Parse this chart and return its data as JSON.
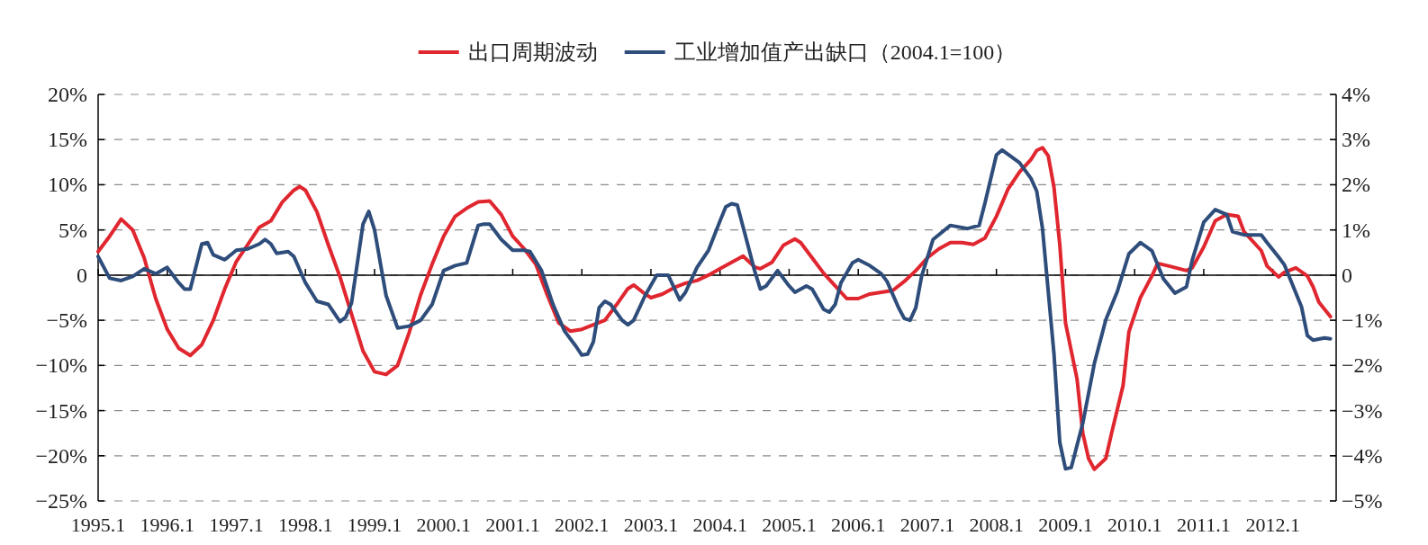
{
  "chart_data": {
    "type": "line",
    "xlim": [
      "1995-01",
      "2012-12"
    ],
    "xticks": [
      {
        "value": "1995-01",
        "label": "1995.1"
      },
      {
        "value": "1996-01",
        "label": "1996.1"
      },
      {
        "value": "1997-01",
        "label": "1997.1"
      },
      {
        "value": "1998-01",
        "label": "1998.1"
      },
      {
        "value": "1999-01",
        "label": "1999.1"
      },
      {
        "value": "2000-01",
        "label": "2000.1"
      },
      {
        "value": "2001-01",
        "label": "2001.1"
      },
      {
        "value": "2002-01",
        "label": "2002.1"
      },
      {
        "value": "2003-01",
        "label": "2003.1"
      },
      {
        "value": "2004-01",
        "label": "2004.1"
      },
      {
        "value": "2005-01",
        "label": "2005.1"
      },
      {
        "value": "2006-01",
        "label": "2006.1"
      },
      {
        "value": "2007-01",
        "label": "2007.1"
      },
      {
        "value": "2008-01",
        "label": "2008.1"
      },
      {
        "value": "2009-01",
        "label": "2009.1"
      },
      {
        "value": "2010-01",
        "label": "2010.1"
      },
      {
        "value": "2011-01",
        "label": "2011.1"
      },
      {
        "value": "2012-01",
        "label": "2012.1"
      }
    ],
    "ylim": [
      -25,
      20
    ],
    "yticks": [
      {
        "value": -25,
        "label": "−25%"
      },
      {
        "value": -20,
        "label": "−20%"
      },
      {
        "value": -15,
        "label": "−15%"
      },
      {
        "value": -10,
        "label": "−10%"
      },
      {
        "value": -5,
        "label": "−5%"
      },
      {
        "value": 0,
        "label": "0"
      },
      {
        "value": 5,
        "label": "5%"
      },
      {
        "value": 10,
        "label": "10%"
      },
      {
        "value": 15,
        "label": "15%"
      },
      {
        "value": 20,
        "label": "20%"
      }
    ],
    "y2lim": [
      -5,
      4
    ],
    "y2ticks": [
      {
        "value": -5,
        "label": "−5%"
      },
      {
        "value": -4,
        "label": "−4%"
      },
      {
        "value": -3,
        "label": "−3%"
      },
      {
        "value": -2,
        "label": "−2%"
      },
      {
        "value": -1,
        "label": "−1%"
      },
      {
        "value": 0,
        "label": "0"
      },
      {
        "value": 1,
        "label": "1%"
      },
      {
        "value": 2,
        "label": "2%"
      },
      {
        "value": 3,
        "label": "3%"
      },
      {
        "value": 4,
        "label": "4%"
      }
    ],
    "grid": "y",
    "legend": "top",
    "ref_lines": [
      {
        "axis": "y",
        "value": 0,
        "color": "#000000"
      }
    ],
    "series": [
      {
        "name": "出口周期波动",
        "color": "#e0262f",
        "x": [
          "1995-01",
          "1995-03",
          "1995-05",
          "1995-07",
          "1995-09",
          "1995-11",
          "1996-01",
          "1996-03",
          "1996-05",
          "1996-07",
          "1996-09",
          "1996-11",
          "1997-01",
          "1997-03",
          "1997-05",
          "1997-07",
          "1997-09",
          "1997-11",
          "1997-12",
          "1998-01",
          "1998-03",
          "1998-05",
          "1998-07",
          "1998-09",
          "1998-11",
          "1999-01",
          "1999-03",
          "1999-05",
          "1999-07",
          "1999-09",
          "1999-11",
          "2000-01",
          "2000-03",
          "2000-05",
          "2000-07",
          "2000-09",
          "2000-11",
          "2001-01",
          "2001-03",
          "2001-05",
          "2001-07",
          "2001-09",
          "2001-11",
          "2002-01",
          "2002-03",
          "2002-05",
          "2002-07",
          "2002-09",
          "2002-10",
          "2002-12",
          "2003-01",
          "2003-03",
          "2003-05",
          "2003-07",
          "2003-09",
          "2003-11",
          "2004-01",
          "2004-03",
          "2004-05",
          "2004-07",
          "2004-08",
          "2004-10",
          "2004-12",
          "2005-02",
          "2005-03",
          "2005-05",
          "2005-07",
          "2005-09",
          "2005-11",
          "2006-01",
          "2006-03",
          "2006-05",
          "2006-07",
          "2006-09",
          "2006-11",
          "2007-01",
          "2007-03",
          "2007-05",
          "2007-07",
          "2007-09",
          "2007-11",
          "2008-01",
          "2008-03",
          "2008-05",
          "2008-07",
          "2008-08",
          "2008-09",
          "2008-10",
          "2008-11",
          "2008-12",
          "2009-01",
          "2009-03",
          "2009-04",
          "2009-05",
          "2009-06",
          "2009-08",
          "2009-09",
          "2009-11",
          "2009-12",
          "2010-02",
          "2010-04",
          "2010-05",
          "2010-07",
          "2010-10",
          "2010-11",
          "2011-01",
          "2011-03",
          "2011-05",
          "2011-07",
          "2011-08",
          "2011-11",
          "2011-12",
          "2012-02",
          "2012-03",
          "2012-05",
          "2012-07",
          "2012-08",
          "2012-09",
          "2012-11"
        ],
        "values": [
          2.6,
          4.3,
          6.2,
          5.0,
          1.9,
          -2.6,
          -6.0,
          -8.1,
          -8.9,
          -7.7,
          -5.0,
          -1.5,
          1.5,
          3.4,
          5.3,
          6.0,
          8.1,
          9.4,
          9.8,
          9.4,
          7.0,
          3.3,
          -0.2,
          -4.3,
          -8.4,
          -10.7,
          -11.0,
          -10.0,
          -6.4,
          -2.2,
          1.2,
          4.3,
          6.5,
          7.4,
          8.1,
          8.2,
          6.7,
          4.3,
          2.9,
          1.2,
          -2.2,
          -5.3,
          -6.2,
          -6.0,
          -5.5,
          -5.0,
          -3.3,
          -1.5,
          -1.1,
          -2.1,
          -2.5,
          -2.1,
          -1.4,
          -0.9,
          -0.6,
          0,
          0.7,
          1.4,
          2.1,
          0.9,
          0.7,
          1.4,
          3.3,
          4.0,
          3.6,
          1.9,
          0.2,
          -1.2,
          -2.6,
          -2.6,
          -2.1,
          -1.9,
          -1.7,
          -0.7,
          0.5,
          1.9,
          2.9,
          3.6,
          3.6,
          3.4,
          4.1,
          6.5,
          9.5,
          11.4,
          12.8,
          13.8,
          14.1,
          13.2,
          9.7,
          3.4,
          -5.3,
          -11.5,
          -17.5,
          -20.3,
          -21.5,
          -20.3,
          -17.5,
          -12.2,
          -6.3,
          -2.5,
          -0.1,
          1.3,
          1.0,
          0.5,
          0.8,
          3.1,
          6.0,
          6.7,
          6.5,
          4.8,
          2.7,
          1.0,
          -0.2,
          0.3,
          0.8,
          -0.1,
          -1.3,
          -3.0,
          -4.6
        ]
      },
      {
        "name": "工业增加值产出缺口（2004.1=100）",
        "color": "#2e4d7b",
        "axis": "y2",
        "x": [
          "1995-01",
          "1995-03",
          "1995-05",
          "1995-07",
          "1995-09",
          "1995-11",
          "1996-01",
          "1996-03",
          "1996-04",
          "1996-05",
          "1996-07",
          "1996-08",
          "1996-09",
          "1996-11",
          "1997-01",
          "1997-03",
          "1997-05",
          "1997-06",
          "1997-07",
          "1997-08",
          "1997-10",
          "1997-11",
          "1998-01",
          "1998-03",
          "1998-05",
          "1998-07",
          "1998-08",
          "1998-09",
          "1998-11",
          "1998-12",
          "1999-01",
          "1999-03",
          "1999-05",
          "1999-07",
          "1999-09",
          "1999-11",
          "2000-01",
          "2000-03",
          "2000-05",
          "2000-07",
          "2000-08",
          "2000-09",
          "2000-11",
          "2001-01",
          "2001-03",
          "2001-04",
          "2001-06",
          "2001-08",
          "2001-10",
          "2001-12",
          "2002-01",
          "2002-02",
          "2002-03",
          "2002-04",
          "2002-05",
          "2002-06",
          "2002-08",
          "2002-09",
          "2002-10",
          "2002-12",
          "2003-02",
          "2003-04",
          "2003-06",
          "2003-07",
          "2003-09",
          "2003-11",
          "2004-01",
          "2004-02",
          "2004-03",
          "2004-04",
          "2004-05",
          "2004-07",
          "2004-08",
          "2004-09",
          "2004-11",
          "2005-01",
          "2005-02",
          "2005-04",
          "2005-05",
          "2005-07",
          "2005-08",
          "2005-09",
          "2005-10",
          "2005-12",
          "2006-01",
          "2006-03",
          "2006-05",
          "2006-06",
          "2006-08",
          "2006-09",
          "2006-10",
          "2006-11",
          "2006-12",
          "2007-02",
          "2007-05",
          "2007-08",
          "2007-10",
          "2007-11",
          "2008-01",
          "2008-02",
          "2008-05",
          "2008-07",
          "2008-08",
          "2008-09",
          "2008-10",
          "2008-11",
          "2008-12",
          "2009-01",
          "2009-02",
          "2009-04",
          "2009-06",
          "2009-08",
          "2009-10",
          "2009-12",
          "2010-02",
          "2010-04",
          "2010-06",
          "2010-08",
          "2010-10",
          "2010-11",
          "2011-01",
          "2011-03",
          "2011-05",
          "2011-06",
          "2011-08",
          "2011-11",
          "2011-12",
          "2012-02",
          "2012-03",
          "2012-06",
          "2012-07",
          "2012-08",
          "2012-10",
          "2012-11"
        ],
        "values": [
          0.41,
          -0.07,
          -0.12,
          -0.03,
          0.14,
          0.03,
          0.17,
          -0.17,
          -0.31,
          -0.31,
          0.69,
          0.72,
          0.45,
          0.34,
          0.55,
          0.58,
          0.69,
          0.79,
          0.69,
          0.48,
          0.52,
          0.41,
          -0.17,
          -0.58,
          -0.65,
          -1.03,
          -0.93,
          -0.62,
          1.13,
          1.41,
          1.0,
          -0.45,
          -1.17,
          -1.13,
          -1.0,
          -0.65,
          0.1,
          0.21,
          0.27,
          1.1,
          1.13,
          1.13,
          0.79,
          0.55,
          0.55,
          0.52,
          0.1,
          -0.65,
          -1.24,
          -1.58,
          -1.77,
          -1.75,
          -1.48,
          -0.72,
          -0.58,
          -0.65,
          -1.0,
          -1.1,
          -1.0,
          -0.45,
          0,
          0,
          -0.55,
          -0.38,
          0.17,
          0.55,
          1.2,
          1.51,
          1.58,
          1.55,
          1.07,
          0.1,
          -0.31,
          -0.24,
          0.1,
          -0.24,
          -0.38,
          -0.24,
          -0.31,
          -0.76,
          -0.82,
          -0.65,
          -0.17,
          0.27,
          0.34,
          0.21,
          0.03,
          -0.14,
          -0.72,
          -0.96,
          -1.0,
          -0.72,
          -0.03,
          0.79,
          1.1,
          1.03,
          1.1,
          1.59,
          2.66,
          2.77,
          2.49,
          2.14,
          1.86,
          1.03,
          -0.36,
          -1.75,
          -3.7,
          -4.29,
          -4.26,
          -3.28,
          -1.96,
          -0.99,
          -0.36,
          0.47,
          0.72,
          0.54,
          -0.08,
          -0.4,
          -0.26,
          0.33,
          1.17,
          1.45,
          1.34,
          0.96,
          0.89,
          0.89,
          0.72,
          0.4,
          0.23,
          -0.71,
          -1.34,
          -1.44,
          -1.39,
          -1.41
        ]
      }
    ]
  }
}
